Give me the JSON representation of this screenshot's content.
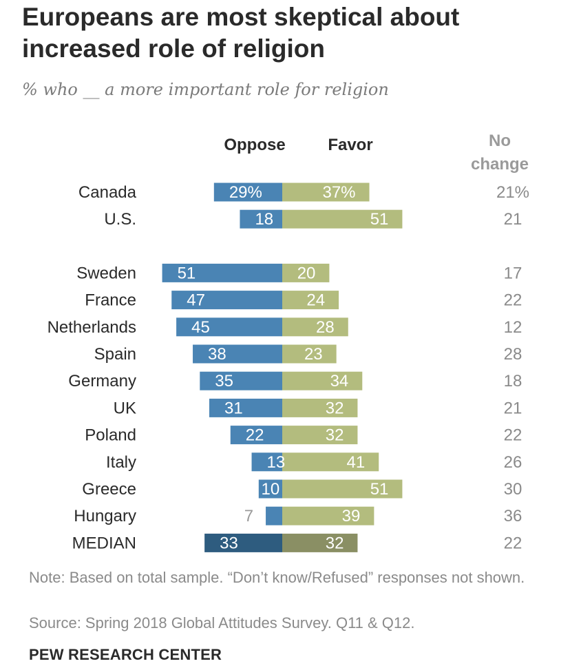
{
  "title": "Europeans are most skeptical about increased role of religion",
  "subtitle": "% who __ a more important role for religion",
  "headers": {
    "oppose": "Oppose",
    "favor": "Favor",
    "no_change_line1": "No",
    "no_change_line2": "change"
  },
  "note": "Note: Based on total sample. “Don’t know/Refused” responses not shown.",
  "source": "Source: Spring 2018 Global Attitudes Survey. Q11 & Q12.",
  "brand": "PEW RESEARCH CENTER",
  "colors": {
    "oppose": "#4a84b4",
    "favor": "#b3bc7e",
    "oppose_median": "#2e5c7f",
    "favor_median": "#8a8f64"
  },
  "chart_data": {
    "type": "bar",
    "orientation": "diverging-horizontal",
    "series_names": [
      "Oppose",
      "Favor",
      "No change"
    ],
    "rows": [
      {
        "category": "Canada",
        "oppose": 29,
        "favor": 37,
        "no_change": 21,
        "oppose_label": "29%",
        "favor_label": "37%",
        "no_change_label": "21%",
        "group": 0
      },
      {
        "category": "U.S.",
        "oppose": 18,
        "favor": 51,
        "no_change": 21,
        "oppose_label": "18",
        "favor_label": "51",
        "no_change_label": "21",
        "group": 0
      },
      {
        "category": "Sweden",
        "oppose": 51,
        "favor": 20,
        "no_change": 17,
        "oppose_label": "51",
        "favor_label": "20",
        "no_change_label": "17",
        "group": 1
      },
      {
        "category": "France",
        "oppose": 47,
        "favor": 24,
        "no_change": 22,
        "oppose_label": "47",
        "favor_label": "24",
        "no_change_label": "22",
        "group": 1
      },
      {
        "category": "Netherlands",
        "oppose": 45,
        "favor": 28,
        "no_change": 12,
        "oppose_label": "45",
        "favor_label": "28",
        "no_change_label": "12",
        "group": 1
      },
      {
        "category": "Spain",
        "oppose": 38,
        "favor": 23,
        "no_change": 28,
        "oppose_label": "38",
        "favor_label": "23",
        "no_change_label": "28",
        "group": 1
      },
      {
        "category": "Germany",
        "oppose": 35,
        "favor": 34,
        "no_change": 18,
        "oppose_label": "35",
        "favor_label": "34",
        "no_change_label": "18",
        "group": 1
      },
      {
        "category": "UK",
        "oppose": 31,
        "favor": 32,
        "no_change": 21,
        "oppose_label": "31",
        "favor_label": "32",
        "no_change_label": "21",
        "group": 1
      },
      {
        "category": "Poland",
        "oppose": 22,
        "favor": 32,
        "no_change": 22,
        "oppose_label": "22",
        "favor_label": "32",
        "no_change_label": "22",
        "group": 1
      },
      {
        "category": "Italy",
        "oppose": 13,
        "favor": 41,
        "no_change": 26,
        "oppose_label": "13",
        "favor_label": "41",
        "no_change_label": "26",
        "group": 1
      },
      {
        "category": "Greece",
        "oppose": 10,
        "favor": 51,
        "no_change": 30,
        "oppose_label": "10",
        "favor_label": "51",
        "no_change_label": "30",
        "group": 1
      },
      {
        "category": "Hungary",
        "oppose": 7,
        "favor": 39,
        "no_change": 36,
        "oppose_label": "7",
        "favor_label": "39",
        "no_change_label": "36",
        "group": 1
      },
      {
        "category": "MEDIAN",
        "oppose": 33,
        "favor": 32,
        "no_change": 22,
        "oppose_label": "33",
        "favor_label": "32",
        "no_change_label": "22",
        "group": 1,
        "median": true
      }
    ]
  }
}
